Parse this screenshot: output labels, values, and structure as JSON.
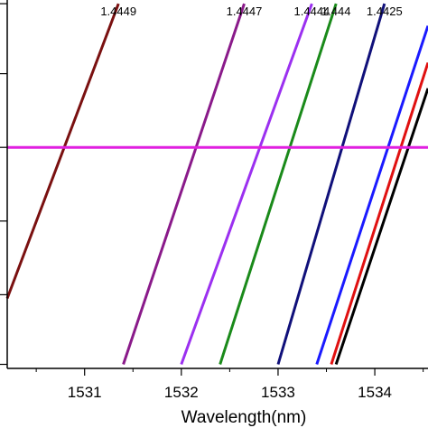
{
  "chart_data": {
    "type": "line",
    "title": "",
    "xlabel": "Wavelength(nm)",
    "ylabel": "",
    "xlim": [
      1530.2,
      1534.55
    ],
    "ylim": [
      0,
      1
    ],
    "x_ticks": [
      1531,
      1532,
      1533,
      1534
    ],
    "x_tick_labels": [
      "1531",
      "1532",
      "1533",
      "1534"
    ],
    "y_ticks": [
      0.011,
      0.2,
      0.4,
      0.6,
      0.8,
      0.99
    ],
    "grid": false,
    "legend": "none",
    "reference_line": {
      "y": 0.6,
      "color": "#e020e0"
    },
    "series": [
      {
        "label": "1.4449",
        "color": "#7a1010",
        "x": [
          1530.2,
          1531.35
        ],
        "y": [
          0.19,
          0.99
        ]
      },
      {
        "label": "1.4447",
        "color": "#8a1a8a",
        "x": [
          1531.4,
          1532.65
        ],
        "y": [
          0.011,
          0.99
        ]
      },
      {
        "label": "1.4444",
        "color": "#9b30f0",
        "x": [
          1532.0,
          1533.35
        ],
        "y": [
          0.011,
          0.99
        ]
      },
      {
        "label": "1.444",
        "color": "#1a8a1a",
        "x": [
          1532.4,
          1533.6
        ],
        "y": [
          0.011,
          0.99
        ]
      },
      {
        "label": "1.4425",
        "color": "#10107a",
        "x": [
          1533.0,
          1534.1
        ],
        "y": [
          0.011,
          0.99
        ]
      },
      {
        "label": "",
        "color": "#1a1aff",
        "x": [
          1533.4,
          1534.55
        ],
        "y": [
          0.011,
          0.93
        ]
      },
      {
        "label": "",
        "color": "#e01010",
        "x": [
          1533.55,
          1534.55
        ],
        "y": [
          0.011,
          0.83
        ]
      },
      {
        "label": "",
        "color": "#000000",
        "x": [
          1533.6,
          1534.55
        ],
        "y": [
          0.011,
          0.76
        ]
      }
    ]
  }
}
